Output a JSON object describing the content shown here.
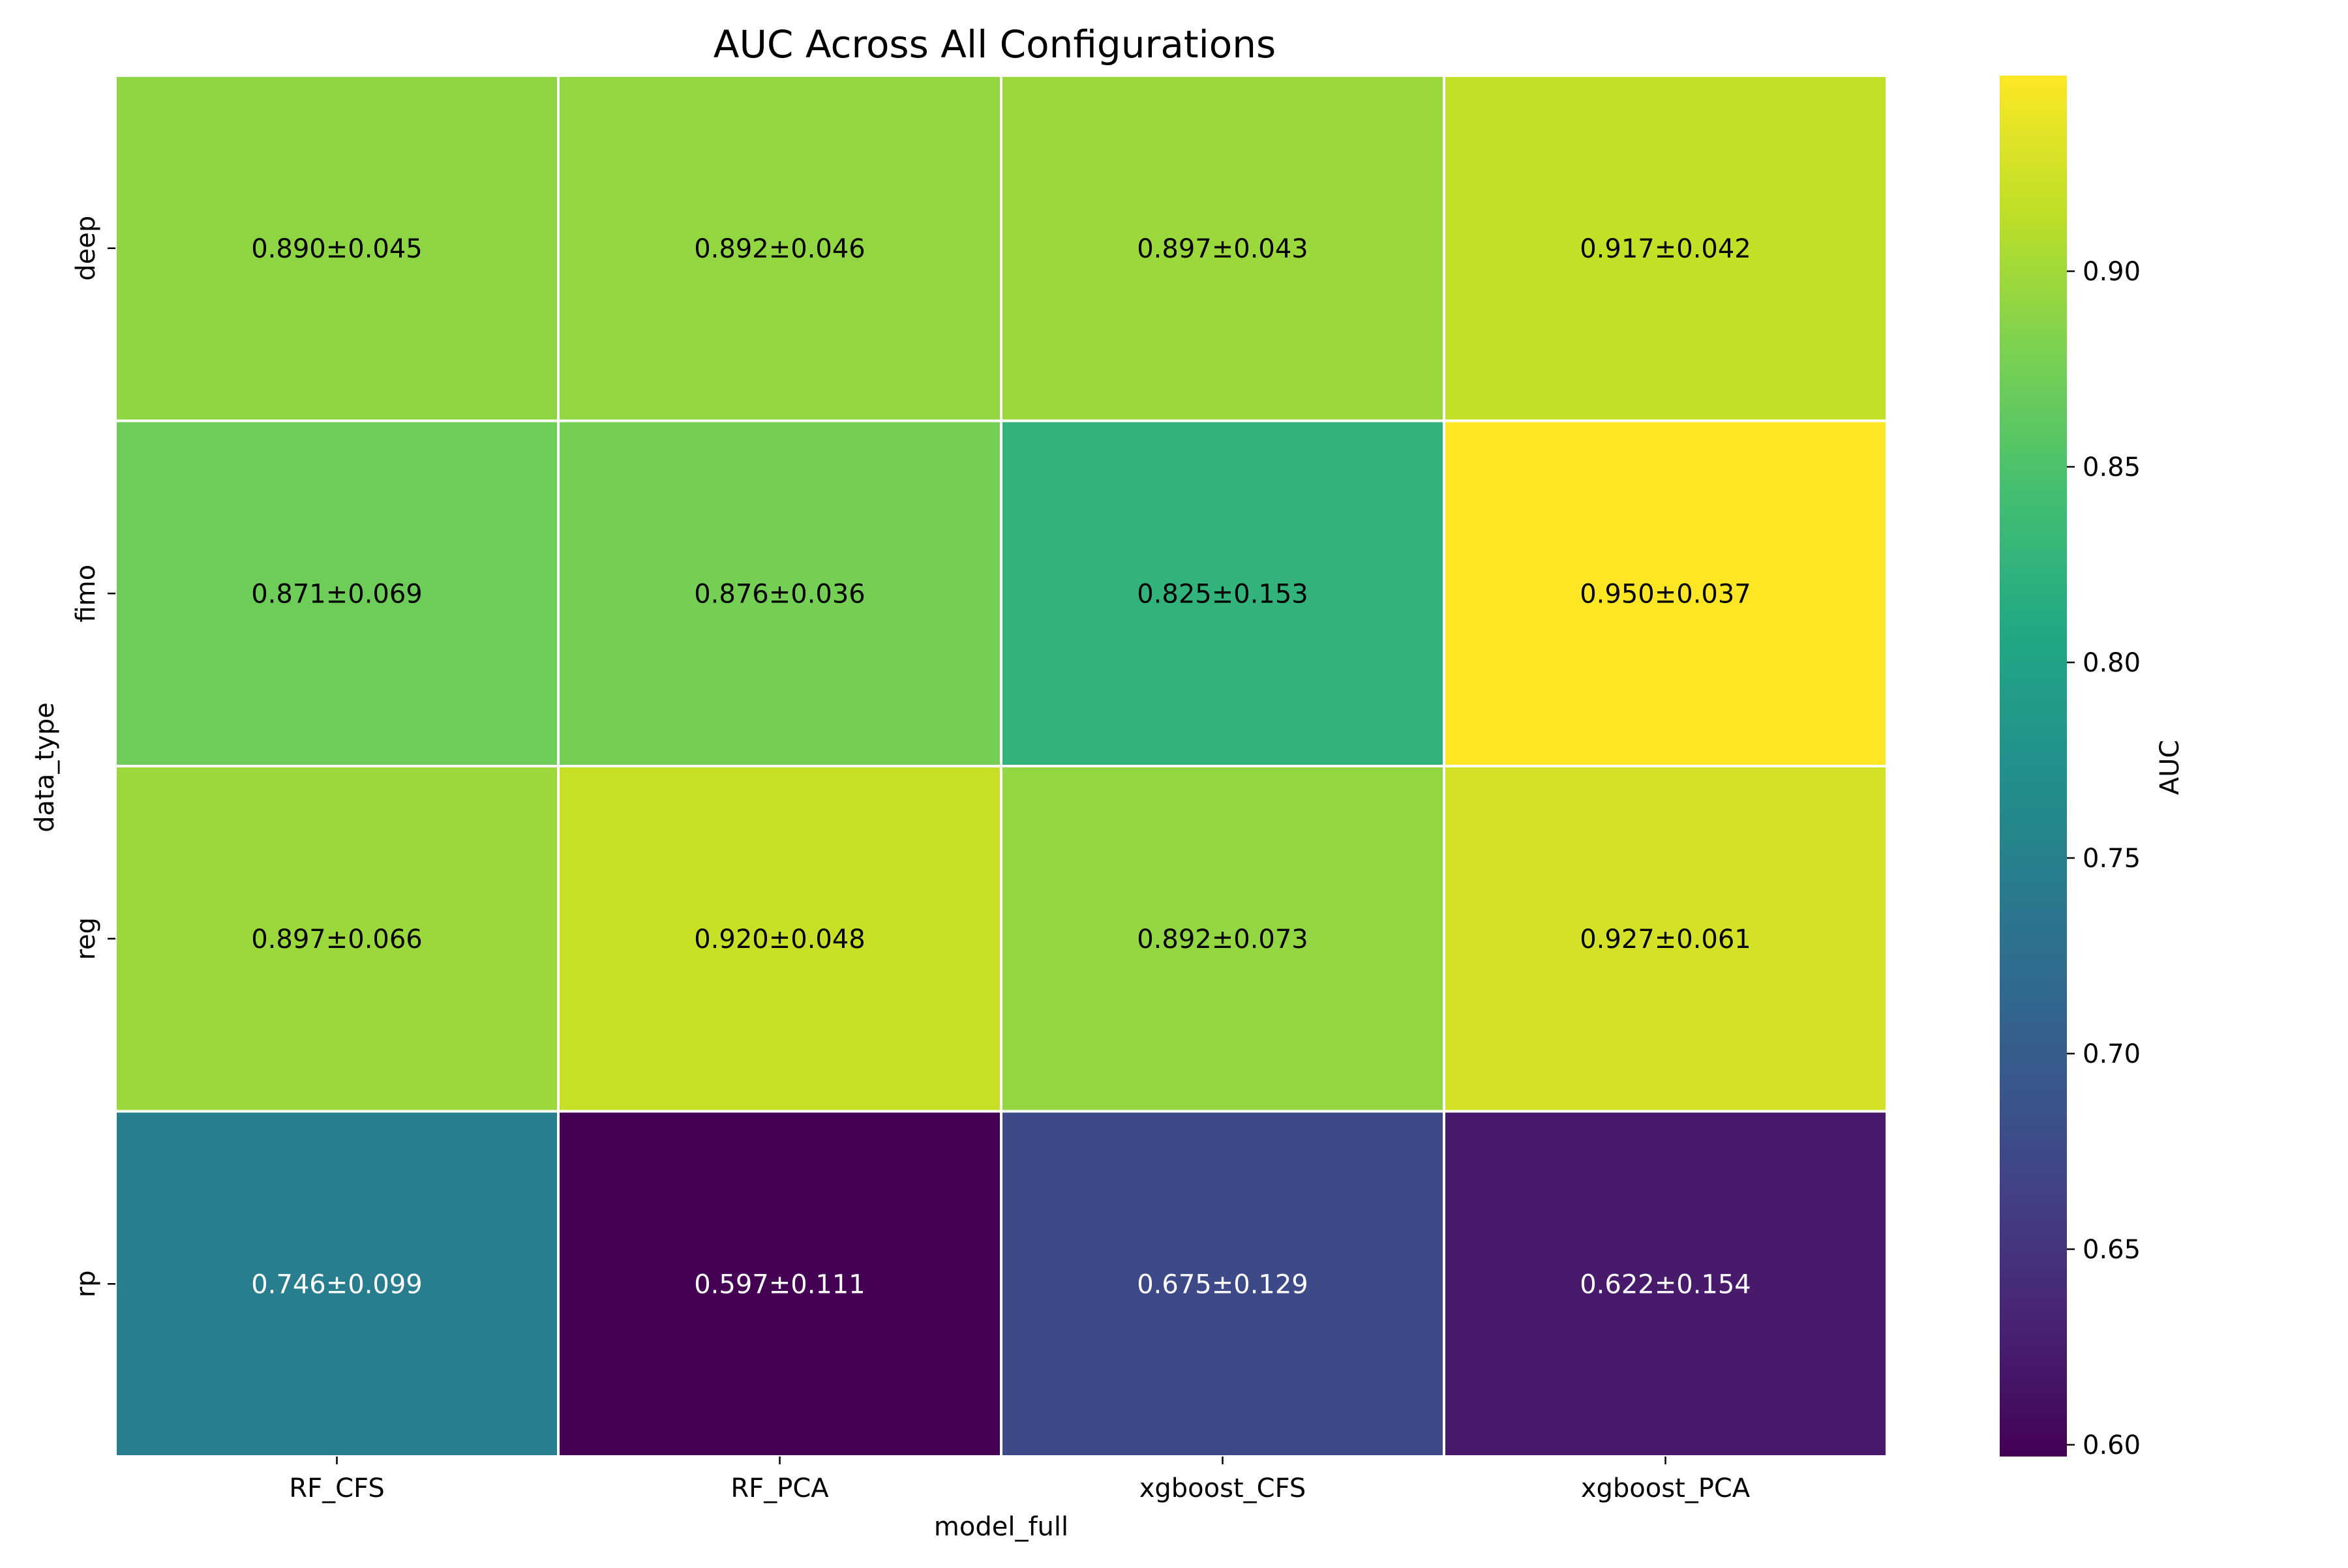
{
  "chart_data": {
    "type": "heatmap",
    "title": "AUC Across All Configurations",
    "xlabel": "model_full",
    "ylabel": "data_type",
    "x_categories": [
      "RF_CFS",
      "RF_PCA",
      "xgboost_CFS",
      "xgboost_PCA"
    ],
    "y_categories": [
      "deep",
      "fimo",
      "reg",
      "rp"
    ],
    "values": [
      [
        0.89,
        0.892,
        0.897,
        0.917
      ],
      [
        0.871,
        0.876,
        0.825,
        0.95
      ],
      [
        0.897,
        0.92,
        0.892,
        0.927
      ],
      [
        0.746,
        0.597,
        0.675,
        0.622
      ]
    ],
    "labels": [
      [
        "0.890±0.045",
        "0.892±0.046",
        "0.897±0.043",
        "0.917±0.042"
      ],
      [
        "0.871±0.069",
        "0.876±0.036",
        "0.825±0.153",
        "0.950±0.037"
      ],
      [
        "0.897±0.066",
        "0.920±0.048",
        "0.892±0.073",
        "0.927±0.061"
      ],
      [
        "0.746±0.099",
        "0.597±0.111",
        "0.675±0.129",
        "0.622±0.154"
      ]
    ],
    "colormap": "viridis",
    "colorbar": {
      "label": "AUC",
      "range": [
        0.597,
        0.95
      ],
      "ticks": [
        0.6,
        0.65,
        0.7,
        0.75,
        0.8,
        0.85,
        0.9
      ],
      "tick_labels": [
        "0.60",
        "0.65",
        "0.70",
        "0.75",
        "0.80",
        "0.85",
        "0.90"
      ]
    },
    "grid": false,
    "cell_border_color": "#ffffff"
  }
}
